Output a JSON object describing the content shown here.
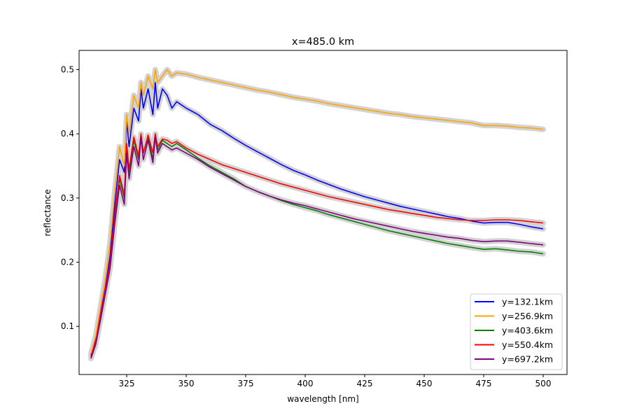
{
  "chart_data": {
    "type": "line",
    "title": "x=485.0 km",
    "xlabel": "wavelength [nm]",
    "ylabel": "reflectance",
    "xlim": [
      305,
      510
    ],
    "ylim": [
      0.025,
      0.53
    ],
    "xticks": [
      325,
      350,
      375,
      400,
      425,
      450,
      475,
      500
    ],
    "yticks": [
      0.1,
      0.2,
      0.3,
      0.4,
      0.5
    ],
    "grid": false,
    "legend_position": "lower-right",
    "band_color": "#d3d3d3",
    "series": [
      {
        "name": "y=132.1km",
        "color": "#0000ff",
        "points": [
          [
            310,
            0.055
          ],
          [
            312,
            0.08
          ],
          [
            314,
            0.12
          ],
          [
            316,
            0.16
          ],
          [
            318,
            0.21
          ],
          [
            320,
            0.29
          ],
          [
            322,
            0.36
          ],
          [
            324,
            0.34
          ],
          [
            325,
            0.42
          ],
          [
            326,
            0.38
          ],
          [
            328,
            0.44
          ],
          [
            330,
            0.42
          ],
          [
            331,
            0.47
          ],
          [
            332,
            0.44
          ],
          [
            334,
            0.47
          ],
          [
            336,
            0.43
          ],
          [
            337,
            0.48
          ],
          [
            338,
            0.44
          ],
          [
            340,
            0.47
          ],
          [
            342,
            0.46
          ],
          [
            344,
            0.44
          ],
          [
            346,
            0.45
          ],
          [
            350,
            0.44
          ],
          [
            355,
            0.43
          ],
          [
            360,
            0.415
          ],
          [
            365,
            0.405
          ],
          [
            370,
            0.393
          ],
          [
            375,
            0.382
          ],
          [
            380,
            0.372
          ],
          [
            385,
            0.362
          ],
          [
            390,
            0.352
          ],
          [
            395,
            0.343
          ],
          [
            400,
            0.336
          ],
          [
            405,
            0.328
          ],
          [
            410,
            0.321
          ],
          [
            415,
            0.314
          ],
          [
            420,
            0.308
          ],
          [
            425,
            0.302
          ],
          [
            430,
            0.297
          ],
          [
            435,
            0.292
          ],
          [
            440,
            0.287
          ],
          [
            445,
            0.283
          ],
          [
            450,
            0.279
          ],
          [
            455,
            0.275
          ],
          [
            460,
            0.271
          ],
          [
            465,
            0.268
          ],
          [
            470,
            0.264
          ],
          [
            475,
            0.261
          ],
          [
            480,
            0.262
          ],
          [
            485,
            0.262
          ],
          [
            490,
            0.259
          ],
          [
            495,
            0.255
          ],
          [
            500,
            0.252
          ]
        ]
      },
      {
        "name": "y=256.9km",
        "color": "#ffa500",
        "points": [
          [
            310,
            0.058
          ],
          [
            312,
            0.085
          ],
          [
            314,
            0.13
          ],
          [
            316,
            0.175
          ],
          [
            318,
            0.23
          ],
          [
            320,
            0.31
          ],
          [
            322,
            0.38
          ],
          [
            324,
            0.35
          ],
          [
            325,
            0.43
          ],
          [
            326,
            0.4
          ],
          [
            328,
            0.46
          ],
          [
            330,
            0.44
          ],
          [
            331,
            0.48
          ],
          [
            332,
            0.46
          ],
          [
            334,
            0.49
          ],
          [
            336,
            0.47
          ],
          [
            337,
            0.5
          ],
          [
            338,
            0.48
          ],
          [
            340,
            0.49
          ],
          [
            342,
            0.5
          ],
          [
            344,
            0.49
          ],
          [
            346,
            0.495
          ],
          [
            350,
            0.493
          ],
          [
            355,
            0.488
          ],
          [
            360,
            0.484
          ],
          [
            365,
            0.48
          ],
          [
            370,
            0.476
          ],
          [
            375,
            0.472
          ],
          [
            380,
            0.468
          ],
          [
            385,
            0.465
          ],
          [
            390,
            0.461
          ],
          [
            395,
            0.457
          ],
          [
            400,
            0.454
          ],
          [
            405,
            0.451
          ],
          [
            410,
            0.447
          ],
          [
            415,
            0.444
          ],
          [
            420,
            0.441
          ],
          [
            425,
            0.438
          ],
          [
            430,
            0.435
          ],
          [
            435,
            0.432
          ],
          [
            440,
            0.43
          ],
          [
            445,
            0.427
          ],
          [
            450,
            0.425
          ],
          [
            455,
            0.423
          ],
          [
            460,
            0.421
          ],
          [
            465,
            0.419
          ],
          [
            470,
            0.417
          ],
          [
            475,
            0.413
          ],
          [
            480,
            0.413
          ],
          [
            485,
            0.412
          ],
          [
            490,
            0.41
          ],
          [
            495,
            0.409
          ],
          [
            500,
            0.407
          ]
        ]
      },
      {
        "name": "y=403.6km",
        "color": "#008000",
        "points": [
          [
            310,
            0.052
          ],
          [
            312,
            0.075
          ],
          [
            314,
            0.115
          ],
          [
            316,
            0.155
          ],
          [
            318,
            0.2
          ],
          [
            320,
            0.27
          ],
          [
            322,
            0.33
          ],
          [
            324,
            0.3
          ],
          [
            325,
            0.38
          ],
          [
            326,
            0.34
          ],
          [
            328,
            0.39
          ],
          [
            330,
            0.36
          ],
          [
            331,
            0.4
          ],
          [
            332,
            0.37
          ],
          [
            334,
            0.395
          ],
          [
            336,
            0.36
          ],
          [
            337,
            0.4
          ],
          [
            338,
            0.375
          ],
          [
            340,
            0.39
          ],
          [
            342,
            0.385
          ],
          [
            344,
            0.38
          ],
          [
            346,
            0.385
          ],
          [
            350,
            0.375
          ],
          [
            355,
            0.362
          ],
          [
            360,
            0.35
          ],
          [
            365,
            0.34
          ],
          [
            370,
            0.33
          ],
          [
            375,
            0.318
          ],
          [
            380,
            0.31
          ],
          [
            385,
            0.303
          ],
          [
            390,
            0.296
          ],
          [
            395,
            0.29
          ],
          [
            400,
            0.285
          ],
          [
            405,
            0.28
          ],
          [
            410,
            0.274
          ],
          [
            415,
            0.269
          ],
          [
            420,
            0.264
          ],
          [
            425,
            0.259
          ],
          [
            430,
            0.254
          ],
          [
            435,
            0.249
          ],
          [
            440,
            0.245
          ],
          [
            445,
            0.241
          ],
          [
            450,
            0.237
          ],
          [
            455,
            0.233
          ],
          [
            460,
            0.229
          ],
          [
            465,
            0.226
          ],
          [
            470,
            0.223
          ],
          [
            475,
            0.22
          ],
          [
            480,
            0.221
          ],
          [
            485,
            0.219
          ],
          [
            490,
            0.217
          ],
          [
            495,
            0.216
          ],
          [
            500,
            0.213
          ]
        ]
      },
      {
        "name": "y=550.4km",
        "color": "#ff0000",
        "points": [
          [
            310,
            0.053
          ],
          [
            312,
            0.076
          ],
          [
            314,
            0.117
          ],
          [
            316,
            0.157
          ],
          [
            318,
            0.2
          ],
          [
            320,
            0.275
          ],
          [
            322,
            0.335
          ],
          [
            324,
            0.305
          ],
          [
            325,
            0.385
          ],
          [
            326,
            0.345
          ],
          [
            328,
            0.395
          ],
          [
            330,
            0.365
          ],
          [
            331,
            0.4
          ],
          [
            332,
            0.37
          ],
          [
            334,
            0.398
          ],
          [
            336,
            0.37
          ],
          [
            337,
            0.4
          ],
          [
            338,
            0.38
          ],
          [
            340,
            0.392
          ],
          [
            342,
            0.39
          ],
          [
            344,
            0.385
          ],
          [
            346,
            0.388
          ],
          [
            350,
            0.378
          ],
          [
            355,
            0.368
          ],
          [
            360,
            0.36
          ],
          [
            365,
            0.352
          ],
          [
            370,
            0.346
          ],
          [
            375,
            0.34
          ],
          [
            380,
            0.334
          ],
          [
            385,
            0.328
          ],
          [
            390,
            0.322
          ],
          [
            395,
            0.317
          ],
          [
            400,
            0.312
          ],
          [
            405,
            0.307
          ],
          [
            410,
            0.302
          ],
          [
            415,
            0.298
          ],
          [
            420,
            0.294
          ],
          [
            425,
            0.29
          ],
          [
            430,
            0.286
          ],
          [
            435,
            0.282
          ],
          [
            440,
            0.279
          ],
          [
            445,
            0.276
          ],
          [
            450,
            0.273
          ],
          [
            455,
            0.27
          ],
          [
            460,
            0.268
          ],
          [
            465,
            0.266
          ],
          [
            470,
            0.265
          ],
          [
            475,
            0.265
          ],
          [
            480,
            0.266
          ],
          [
            485,
            0.266
          ],
          [
            490,
            0.265
          ],
          [
            495,
            0.263
          ],
          [
            500,
            0.261
          ]
        ]
      },
      {
        "name": "y=697.2km",
        "color": "#800080",
        "points": [
          [
            310,
            0.05
          ],
          [
            312,
            0.072
          ],
          [
            314,
            0.11
          ],
          [
            316,
            0.15
          ],
          [
            318,
            0.19
          ],
          [
            320,
            0.26
          ],
          [
            322,
            0.32
          ],
          [
            324,
            0.29
          ],
          [
            325,
            0.37
          ],
          [
            326,
            0.33
          ],
          [
            328,
            0.38
          ],
          [
            330,
            0.35
          ],
          [
            331,
            0.395
          ],
          [
            332,
            0.36
          ],
          [
            334,
            0.39
          ],
          [
            336,
            0.355
          ],
          [
            337,
            0.395
          ],
          [
            338,
            0.37
          ],
          [
            340,
            0.385
          ],
          [
            342,
            0.38
          ],
          [
            344,
            0.375
          ],
          [
            346,
            0.378
          ],
          [
            350,
            0.37
          ],
          [
            355,
            0.36
          ],
          [
            360,
            0.348
          ],
          [
            365,
            0.338
          ],
          [
            370,
            0.328
          ],
          [
            375,
            0.318
          ],
          [
            380,
            0.31
          ],
          [
            385,
            0.303
          ],
          [
            390,
            0.297
          ],
          [
            395,
            0.292
          ],
          [
            400,
            0.288
          ],
          [
            405,
            0.283
          ],
          [
            410,
            0.278
          ],
          [
            415,
            0.273
          ],
          [
            420,
            0.268
          ],
          [
            425,
            0.264
          ],
          [
            430,
            0.26
          ],
          [
            435,
            0.256
          ],
          [
            440,
            0.252
          ],
          [
            445,
            0.248
          ],
          [
            450,
            0.245
          ],
          [
            455,
            0.242
          ],
          [
            460,
            0.239
          ],
          [
            465,
            0.237
          ],
          [
            470,
            0.234
          ],
          [
            475,
            0.232
          ],
          [
            480,
            0.233
          ],
          [
            485,
            0.233
          ],
          [
            490,
            0.231
          ],
          [
            495,
            0.229
          ],
          [
            500,
            0.227
          ]
        ]
      }
    ]
  }
}
